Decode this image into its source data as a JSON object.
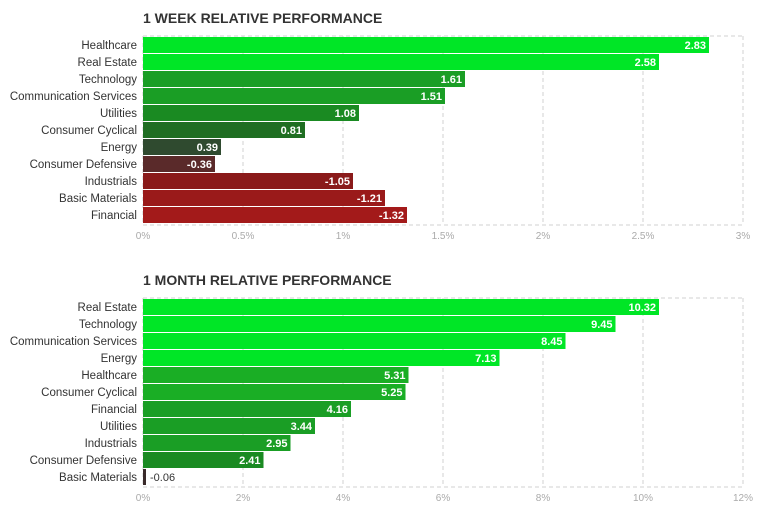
{
  "chart_data": [
    {
      "type": "bar",
      "orientation": "horizontal",
      "title": "1 WEEK RELATIVE PERFORMANCE",
      "categories": [
        "Healthcare",
        "Real Estate",
        "Technology",
        "Communication Services",
        "Utilities",
        "Consumer Cyclical",
        "Energy",
        "Consumer Defensive",
        "Industrials",
        "Basic Materials",
        "Financial"
      ],
      "values": [
        2.83,
        2.58,
        1.61,
        1.51,
        1.08,
        0.81,
        0.39,
        -0.36,
        -1.05,
        -1.21,
        -1.32
      ],
      "value_labels": [
        "2.83",
        "2.58",
        "1.61",
        "1.51",
        "1.08",
        "0.81",
        "0.39",
        "-0.36",
        "-1.05",
        "-1.21",
        "-1.32"
      ],
      "colors": [
        "#00e626",
        "#00e626",
        "#1a9e25",
        "#1a9e25",
        "#1a8a22",
        "#1f6e22",
        "#2f4a2f",
        "#5a2a2a",
        "#8a1a1a",
        "#9a1a1a",
        "#a31a1a"
      ],
      "xlim": [
        0,
        3
      ],
      "xticks": [
        "0%",
        "0.5%",
        "1%",
        "1.5%",
        "2%",
        "2.5%",
        "3%"
      ],
      "grid": true,
      "xlabel": "",
      "ylabel": ""
    },
    {
      "type": "bar",
      "orientation": "horizontal",
      "title": "1 MONTH RELATIVE PERFORMANCE",
      "categories": [
        "Real Estate",
        "Technology",
        "Communication Services",
        "Energy",
        "Healthcare",
        "Consumer Cyclical",
        "Financial",
        "Utilities",
        "Industrials",
        "Consumer Defensive",
        "Basic Materials"
      ],
      "values": [
        10.32,
        9.45,
        8.45,
        7.13,
        5.31,
        5.25,
        4.16,
        3.44,
        2.95,
        2.41,
        -0.06
      ],
      "value_labels": [
        "10.32",
        "9.45",
        "8.45",
        "7.13",
        "5.31",
        "5.25",
        "4.16",
        "3.44",
        "2.95",
        "2.41",
        "-0.06"
      ],
      "colors": [
        "#00e626",
        "#00e626",
        "#00e626",
        "#00e626",
        "#1aae25",
        "#1aae25",
        "#1a9e25",
        "#1a9e25",
        "#1a9e25",
        "#1a8a22",
        "#3a2a2a"
      ],
      "xlim": [
        0,
        12
      ],
      "xticks": [
        "0%",
        "2%",
        "4%",
        "6%",
        "8%",
        "10%",
        "12%"
      ],
      "grid": true,
      "xlabel": "",
      "ylabel": ""
    }
  ]
}
